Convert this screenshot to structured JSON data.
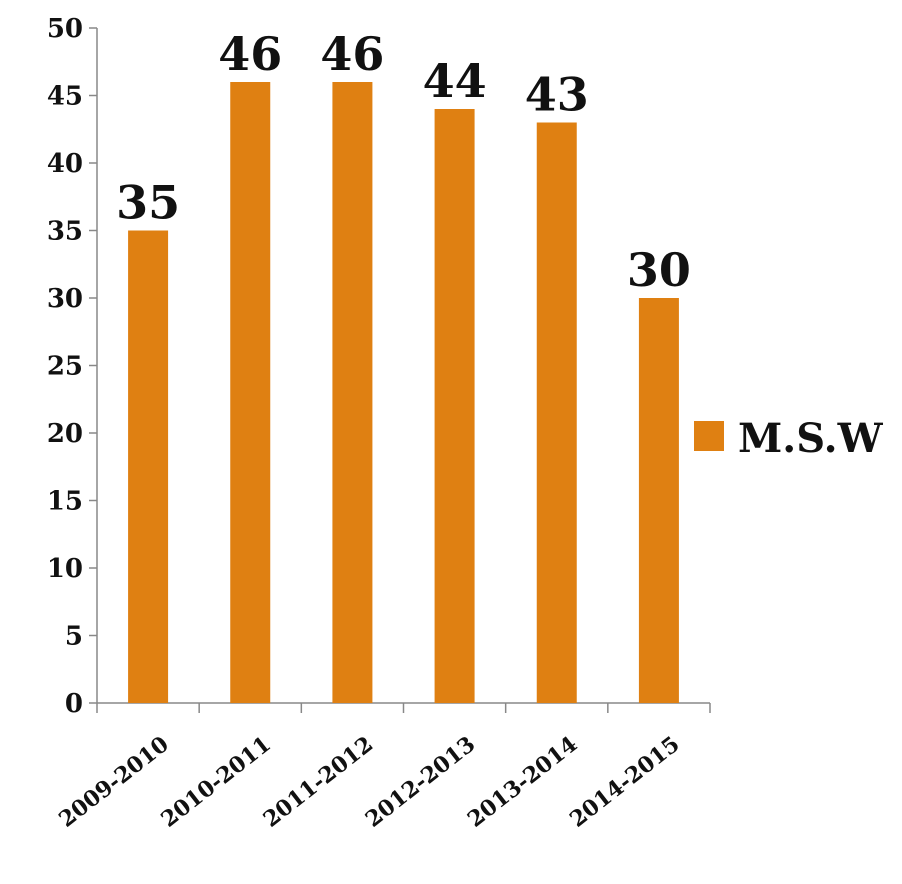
{
  "chart_data": {
    "type": "bar",
    "categories": [
      "2009-2010",
      "2010-2011",
      "2011-2012",
      "2012-2013",
      "2013-2014",
      "2014-2015"
    ],
    "series": [
      {
        "name": "M.S.W",
        "values": [
          35,
          46,
          46,
          44,
          43,
          30
        ],
        "color": "#DF8012"
      }
    ],
    "title": "",
    "xlabel": "",
    "ylabel": "",
    "ylim": [
      0,
      50
    ],
    "yticks": [
      0,
      5,
      10,
      15,
      20,
      25,
      30,
      35,
      40,
      45,
      50
    ],
    "grid": false,
    "legend": {
      "placement": "right",
      "entries": [
        "M.S.W"
      ]
    },
    "data_labels": true
  }
}
